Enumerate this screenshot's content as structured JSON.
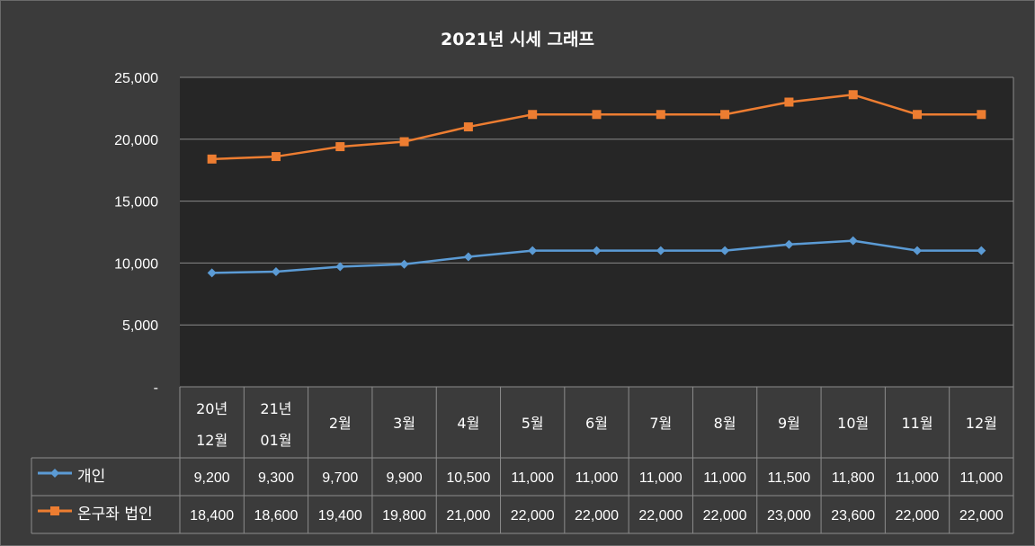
{
  "chart_data": {
    "type": "line",
    "title": "2021년 시세 그래프",
    "categories": [
      [
        "20년",
        "12월"
      ],
      [
        "21년",
        "01월"
      ],
      [
        "2월"
      ],
      [
        "3월"
      ],
      [
        "4월"
      ],
      [
        "5월"
      ],
      [
        "6월"
      ],
      [
        "7월"
      ],
      [
        "8월"
      ],
      [
        "9월"
      ],
      [
        "10월"
      ],
      [
        "11월"
      ],
      [
        "12월"
      ]
    ],
    "ylim": [
      0,
      25000
    ],
    "yticks": [
      0,
      5000,
      10000,
      15000,
      20000,
      25000
    ],
    "ytick_labels": [
      "-",
      "5,000",
      "10,000",
      "15,000",
      "20,000",
      "25,000"
    ],
    "grid": true,
    "legend": "data-table",
    "series": [
      {
        "name": "개인",
        "color": "#5b9bd5",
        "marker": "diamond",
        "values": [
          9200,
          9300,
          9700,
          9900,
          10500,
          11000,
          11000,
          11000,
          11000,
          11500,
          11800,
          11000,
          11000
        ],
        "labels": [
          "9,200",
          "9,300",
          "9,700",
          "9,900",
          "10,500",
          "11,000",
          "11,000",
          "11,000",
          "11,000",
          "11,500",
          "11,800",
          "11,000",
          "11,000"
        ]
      },
      {
        "name": "온구좌 법인",
        "color": "#ed7d31",
        "marker": "square",
        "values": [
          18400,
          18600,
          19400,
          19800,
          21000,
          22000,
          22000,
          22000,
          22000,
          23000,
          23600,
          22000,
          22000
        ],
        "labels": [
          "18,400",
          "18,600",
          "19,400",
          "19,800",
          "21,000",
          "22,000",
          "22,000",
          "22,000",
          "22,000",
          "23,000",
          "23,600",
          "22,000",
          "22,000"
        ]
      }
    ]
  }
}
